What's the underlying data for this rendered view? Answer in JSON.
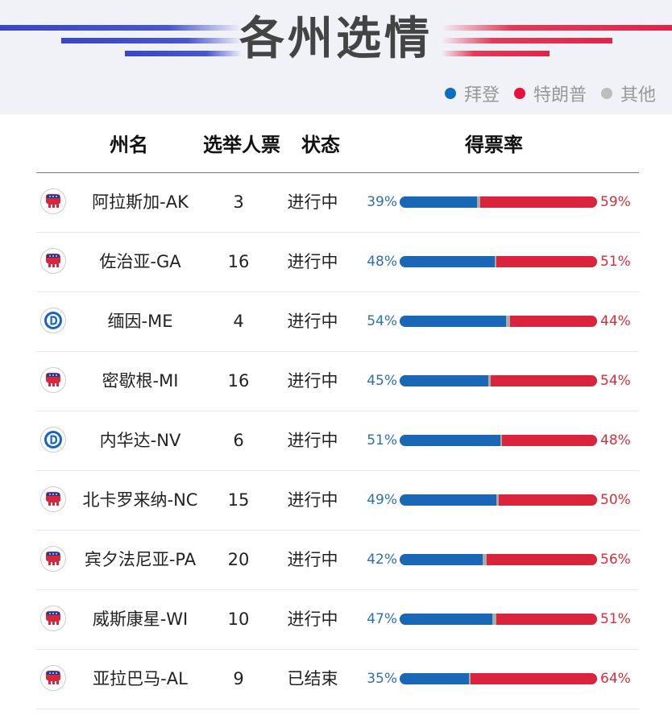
{
  "title": "各州选情",
  "legend": [
    {
      "label": "拜登",
      "color": "#0a6fc2"
    },
    {
      "label": "特朗普",
      "color": "#e8103c"
    },
    {
      "label": "其他",
      "color": "#bdbdbd"
    }
  ],
  "columns": {
    "state": "州名",
    "votes": "选举人票",
    "status": "状态",
    "rate": "得票率"
  },
  "chart_data": {
    "type": "table",
    "series": [
      {
        "name": "拜登",
        "color": "#1a68b5"
      },
      {
        "name": "特朗普",
        "color": "#d9243c"
      }
    ],
    "rows": [
      {
        "state": "阿拉斯加-AK",
        "party": "rep",
        "votes": "3",
        "status": "进行中",
        "biden": 39,
        "trump": 59,
        "biden_label": "39%",
        "trump_label": "59%"
      },
      {
        "state": "佐治亚-GA",
        "party": "rep",
        "votes": "16",
        "status": "进行中",
        "biden": 48,
        "trump": 51,
        "biden_label": "48%",
        "trump_label": "51%"
      },
      {
        "state": "缅因-ME",
        "party": "dem",
        "votes": "4",
        "status": "进行中",
        "biden": 54,
        "trump": 44,
        "biden_label": "54%",
        "trump_label": "44%"
      },
      {
        "state": "密歇根-MI",
        "party": "rep",
        "votes": "16",
        "status": "进行中",
        "biden": 45,
        "trump": 54,
        "biden_label": "45%",
        "trump_label": "54%"
      },
      {
        "state": "内华达-NV",
        "party": "dem",
        "votes": "6",
        "status": "进行中",
        "biden": 51,
        "trump": 48,
        "biden_label": "51%",
        "trump_label": "48%"
      },
      {
        "state": "北卡罗来纳-NC",
        "party": "rep",
        "votes": "15",
        "status": "进行中",
        "biden": 49,
        "trump": 50,
        "biden_label": "49%",
        "trump_label": "50%"
      },
      {
        "state": "宾夕法尼亚-PA",
        "party": "rep",
        "votes": "20",
        "status": "进行中",
        "biden": 42,
        "trump": 56,
        "biden_label": "42%",
        "trump_label": "56%"
      },
      {
        "state": "威斯康星-WI",
        "party": "rep",
        "votes": "10",
        "status": "进行中",
        "biden": 47,
        "trump": 51,
        "biden_label": "47%",
        "trump_label": "51%"
      },
      {
        "state": "亚拉巴马-AL",
        "party": "rep",
        "votes": "9",
        "status": "已结束",
        "biden": 35,
        "trump": 64,
        "biden_label": "35%",
        "trump_label": "64%"
      }
    ]
  }
}
